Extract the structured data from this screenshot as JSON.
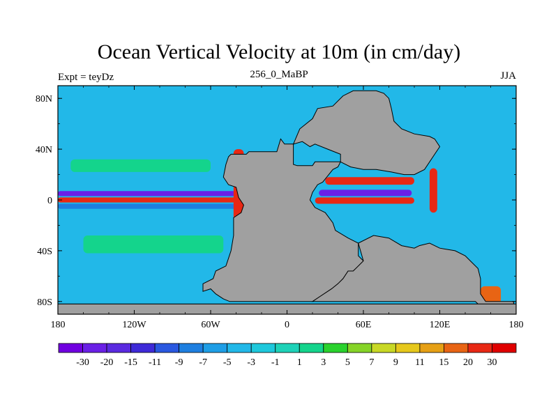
{
  "chart_data": {
    "type": "heatmap",
    "title": "Ocean Vertical Velocity at 10m (in cm/day)",
    "left_string": "Expt = teyDz",
    "center_string": "256_0_MaBP",
    "right_string": "JJA",
    "projection": "cylindrical-equidistant",
    "xlim": [
      -180,
      180
    ],
    "ylim": [
      -90,
      90
    ],
    "x_ticks": [
      {
        "value": -180,
        "label": "180"
      },
      {
        "value": -120,
        "label": "120W"
      },
      {
        "value": -60,
        "label": "60W"
      },
      {
        "value": 0,
        "label": "0"
      },
      {
        "value": 60,
        "label": "60E"
      },
      {
        "value": 120,
        "label": "120E"
      },
      {
        "value": 180,
        "label": "180"
      }
    ],
    "y_ticks": [
      {
        "value": 80,
        "label": "80N"
      },
      {
        "value": 40,
        "label": "40N"
      },
      {
        "value": 0,
        "label": "0"
      },
      {
        "value": -40,
        "label": "40S"
      },
      {
        "value": -80,
        "label": "80S"
      }
    ],
    "land_color": "#a0a0a0",
    "colorbar": {
      "levels": [
        "-30",
        "-20",
        "-15",
        "-11",
        "-9",
        "-7",
        "-5",
        "-3",
        "-1",
        "1",
        "3",
        "5",
        "7",
        "9",
        "11",
        "15",
        "20",
        "30"
      ],
      "colors": [
        "#7000e0",
        "#6a20e6",
        "#5a2ae0",
        "#3e2ad8",
        "#2a58e0",
        "#1e7fe0",
        "#1e9ee6",
        "#22b8e8",
        "#1ec8dc",
        "#1ed2b8",
        "#14d48c",
        "#2ad22e",
        "#86d428",
        "#c8d826",
        "#e6c81c",
        "#e6a015",
        "#e86414",
        "#e82814",
        "#e00000"
      ]
    },
    "fields": {
      "background_value": -4,
      "features": [
        {
          "name": "equatorial-upwelling",
          "lon": [
            -180,
            -40
          ],
          "lat": [
            -2,
            2
          ],
          "value": 25
        },
        {
          "name": "equatorial-flank-north",
          "lon": [
            -180,
            -40
          ],
          "lat": [
            3,
            7
          ],
          "value": -28
        },
        {
          "name": "equatorial-flank-south",
          "lon": [
            -180,
            -40
          ],
          "lat": [
            -7,
            -3
          ],
          "value": -8
        },
        {
          "name": "subtropical-band-north",
          "lon": [
            -170,
            -60
          ],
          "lat": [
            22,
            32
          ],
          "value": 1
        },
        {
          "name": "subtropical-band-south",
          "lon": [
            -160,
            -50
          ],
          "lat": [
            -42,
            -28
          ],
          "value": 1
        },
        {
          "name": "eastern-ocean-upwelling",
          "lon": [
            -42,
            -34
          ],
          "lat": [
            -20,
            40
          ],
          "value": 22
        },
        {
          "name": "tethys-equatorial-upwelling",
          "lon": [
            22,
            100
          ],
          "lat": [
            -3,
            2
          ],
          "value": 20
        },
        {
          "name": "tethys-flank-north",
          "lon": [
            25,
            98
          ],
          "lat": [
            3,
            8
          ],
          "value": -30
        },
        {
          "name": "tethys-north-coast",
          "lon": [
            30,
            100
          ],
          "lat": [
            12,
            18
          ],
          "value": 20
        },
        {
          "name": "east-tethys-coast",
          "lon": [
            112,
            118
          ],
          "lat": [
            -10,
            25
          ],
          "value": 22
        },
        {
          "name": "southern-coast-upwelling",
          "lon": [
            152,
            168
          ],
          "lat": [
            -82,
            -68
          ],
          "value": 18
        }
      ]
    },
    "land": [
      {
        "name": "americas",
        "points": [
          [
            -44,
            36
          ],
          [
            -32,
            36
          ],
          [
            -30,
            38
          ],
          [
            -8,
            38
          ],
          [
            -5,
            48
          ],
          [
            -2,
            44
          ],
          [
            5,
            44
          ],
          [
            5,
            28
          ],
          [
            8,
            27
          ],
          [
            20,
            27
          ],
          [
            22,
            30
          ],
          [
            42,
            30
          ],
          [
            40,
            26
          ],
          [
            36,
            24
          ],
          [
            28,
            14
          ],
          [
            24,
            12
          ],
          [
            20,
            6
          ],
          [
            18,
            0
          ],
          [
            22,
            -6
          ],
          [
            30,
            -10
          ],
          [
            36,
            -18
          ],
          [
            38,
            -24
          ],
          [
            48,
            -30
          ],
          [
            56,
            -34
          ],
          [
            56,
            -44
          ],
          [
            60,
            -48
          ],
          [
            56,
            -52
          ],
          [
            52,
            -56
          ],
          [
            48,
            -56
          ],
          [
            44,
            -62
          ],
          [
            40,
            -66
          ],
          [
            35,
            -70
          ],
          [
            26,
            -76
          ],
          [
            20,
            -80
          ],
          [
            -36,
            -80
          ],
          [
            -45,
            -80
          ],
          [
            -50,
            -78
          ],
          [
            -56,
            -74
          ],
          [
            -60,
            -70
          ],
          [
            -66,
            -72
          ],
          [
            -66,
            -66
          ],
          [
            -58,
            -62
          ],
          [
            -56,
            -56
          ],
          [
            -48,
            -52
          ],
          [
            -46,
            -46
          ],
          [
            -44,
            -40
          ],
          [
            -42,
            -28
          ],
          [
            -42,
            -14
          ],
          [
            -36,
            -10
          ],
          [
            -34,
            -4
          ],
          [
            -38,
            2
          ],
          [
            -40,
            10
          ],
          [
            -46,
            12
          ],
          [
            -50,
            18
          ],
          [
            -48,
            28
          ],
          [
            -46,
            34
          ]
        ]
      },
      {
        "name": "north-continent",
        "points": [
          [
            5,
            44
          ],
          [
            10,
            56
          ],
          [
            20,
            64
          ],
          [
            24,
            72
          ],
          [
            36,
            74
          ],
          [
            44,
            82
          ],
          [
            52,
            86
          ],
          [
            70,
            86
          ],
          [
            76,
            84
          ],
          [
            80,
            80
          ],
          [
            82,
            72
          ],
          [
            84,
            62
          ],
          [
            90,
            56
          ],
          [
            100,
            52
          ],
          [
            112,
            50
          ],
          [
            116,
            48
          ],
          [
            120,
            42
          ],
          [
            116,
            36
          ],
          [
            108,
            24
          ],
          [
            100,
            20
          ],
          [
            92,
            20
          ],
          [
            82,
            22
          ],
          [
            70,
            24
          ],
          [
            60,
            24
          ],
          [
            50,
            26
          ],
          [
            42,
            30
          ],
          [
            42,
            36
          ],
          [
            32,
            40
          ],
          [
            22,
            44
          ],
          [
            18,
            42
          ],
          [
            12,
            46
          ]
        ]
      },
      {
        "name": "east-continent",
        "points": [
          [
            56,
            -34
          ],
          [
            68,
            -28
          ],
          [
            80,
            -30
          ],
          [
            90,
            -36
          ],
          [
            100,
            -38
          ],
          [
            104,
            -36
          ],
          [
            112,
            -34
          ],
          [
            120,
            -38
          ],
          [
            132,
            -40
          ],
          [
            140,
            -44
          ],
          [
            144,
            -48
          ],
          [
            150,
            -54
          ],
          [
            152,
            -62
          ],
          [
            152,
            -74
          ],
          [
            156,
            -80
          ],
          [
            178,
            -80
          ],
          [
            178,
            -82
          ],
          [
            -180,
            -82
          ],
          [
            -180,
            -88
          ],
          [
            180,
            -88
          ],
          [
            180,
            -82
          ],
          [
            150,
            -82
          ],
          [
            148,
            -80
          ],
          [
            40,
            -80
          ],
          [
            20,
            -80
          ],
          [
            26,
            -76
          ],
          [
            35,
            -70
          ],
          [
            40,
            -66
          ],
          [
            44,
            -62
          ],
          [
            48,
            -56
          ],
          [
            52,
            -56
          ],
          [
            56,
            -52
          ],
          [
            60,
            -48
          ]
        ]
      },
      {
        "name": "south-polar-strip",
        "points": [
          [
            -180,
            -82
          ],
          [
            180,
            -82
          ],
          [
            180,
            -90
          ],
          [
            -180,
            -90
          ]
        ]
      }
    ]
  }
}
